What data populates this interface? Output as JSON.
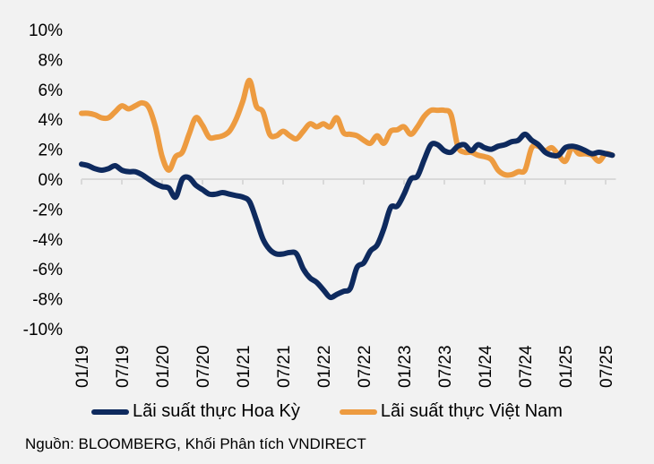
{
  "chart_data": {
    "type": "line",
    "title": "",
    "xlabel": "",
    "ylabel": "",
    "ylim": [
      -10,
      10
    ],
    "yticks": [
      10,
      8,
      6,
      4,
      2,
      0,
      -2,
      -4,
      -6,
      -8,
      -10
    ],
    "ytick_labels": [
      "10%",
      "8%",
      "6%",
      "4%",
      "2%",
      "0%",
      "-2%",
      "-4%",
      "-6%",
      "-8%",
      "-10%"
    ],
    "x_start": "01/19",
    "x_unit": "month",
    "xtick_labels": [
      "01/19",
      "07/19",
      "01/20",
      "07/20",
      "01/21",
      "07/21",
      "01/22",
      "07/22",
      "01/23",
      "07/23",
      "01/24",
      "07/24",
      "01/25",
      "07/25"
    ],
    "xtick_step_months": 6,
    "grid": false,
    "legend_position": "bottom",
    "series": [
      {
        "name": "Lãi suất thực Hoa Kỳ",
        "color": "#0e2a5e",
        "values": [
          1.0,
          0.9,
          0.7,
          0.6,
          0.7,
          0.9,
          0.6,
          0.5,
          0.5,
          0.3,
          0.0,
          -0.3,
          -0.5,
          -0.6,
          -1.2,
          0.0,
          0.1,
          -0.4,
          -0.7,
          -1.0,
          -1.0,
          -0.9,
          -1.0,
          -1.1,
          -1.2,
          -1.5,
          -2.7,
          -4.0,
          -4.7,
          -5.0,
          -5.0,
          -4.9,
          -5.0,
          -6.0,
          -6.6,
          -6.9,
          -7.4,
          -7.9,
          -7.7,
          -7.5,
          -7.3,
          -5.9,
          -5.6,
          -4.8,
          -4.4,
          -3.3,
          -1.9,
          -1.8,
          -1.0,
          0.0,
          0.2,
          1.3,
          2.3,
          2.3,
          1.9,
          1.8,
          2.2,
          2.3,
          1.9,
          2.3,
          2.1,
          2.0,
          2.2,
          2.3,
          2.5,
          2.6,
          3.0,
          2.6,
          2.3,
          1.8,
          1.6,
          1.6,
          2.1,
          2.2,
          2.1,
          1.9,
          1.7,
          1.8,
          1.7,
          1.6
        ]
      },
      {
        "name": "Lãi suất thực Việt Nam",
        "color": "#ed9b40",
        "values": [
          4.4,
          4.4,
          4.3,
          4.1,
          4.1,
          4.5,
          4.9,
          4.7,
          4.9,
          5.1,
          4.8,
          3.5,
          1.5,
          0.6,
          1.5,
          1.8,
          3.0,
          4.1,
          3.6,
          2.8,
          2.8,
          2.9,
          3.2,
          4.0,
          5.2,
          6.6,
          4.9,
          4.5,
          3.0,
          2.9,
          3.2,
          2.9,
          2.7,
          3.2,
          3.7,
          3.5,
          3.7,
          3.5,
          4.1,
          3.1,
          3.0,
          2.9,
          2.6,
          2.4,
          2.9,
          2.4,
          3.2,
          3.3,
          3.5,
          3.0,
          3.5,
          4.2,
          4.6,
          4.6,
          4.6,
          4.3,
          2.2,
          1.8,
          1.8,
          1.6,
          1.5,
          1.3,
          0.6,
          0.3,
          0.3,
          0.5,
          0.6,
          2.1,
          2.2,
          1.9,
          2.1,
          1.6,
          1.2,
          2.1,
          1.7,
          1.7,
          1.6,
          1.2,
          1.7,
          1.6
        ]
      }
    ]
  },
  "legend": {
    "us_label": "Lãi suất thực Hoa Kỳ",
    "vn_label": "Lãi suất thực Việt Nam"
  },
  "source": "Nguồn: BLOOMBERG, Khối Phân tích VNDIRECT"
}
